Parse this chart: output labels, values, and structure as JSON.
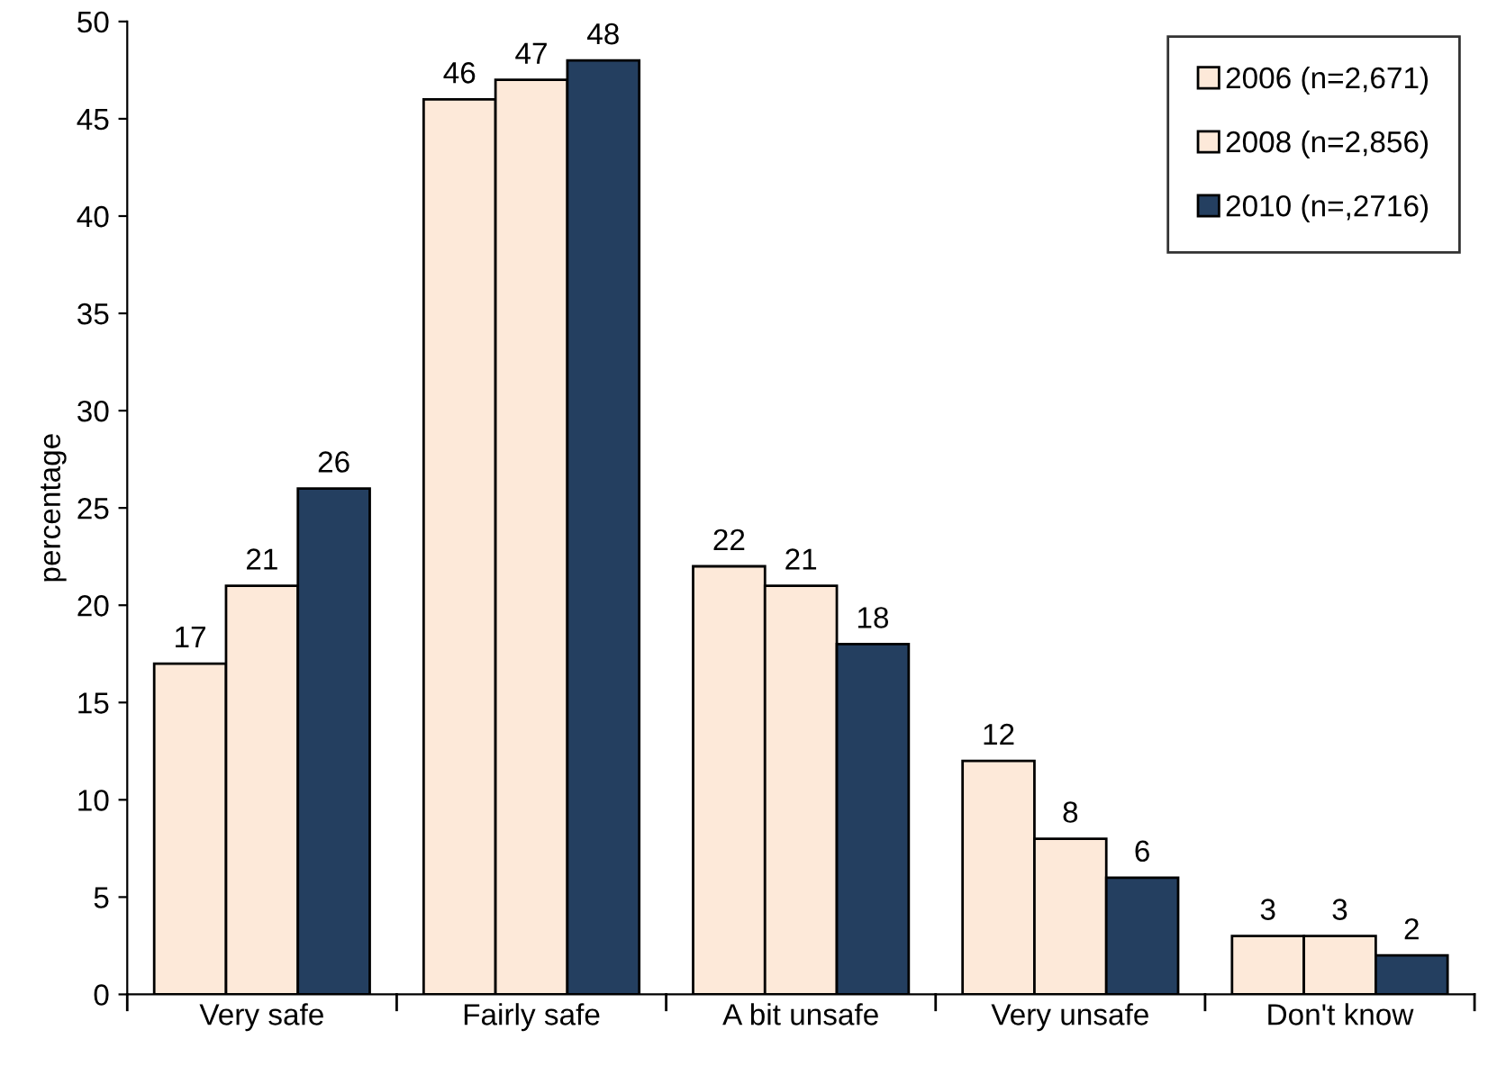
{
  "chart_data": {
    "type": "bar",
    "ylabel": "percentage",
    "categories": [
      "Very safe",
      "Fairly safe",
      "A bit unsafe",
      "Very unsafe",
      "Don't know"
    ],
    "series": [
      {
        "name": "2006 (n=2,671)",
        "color": "#fde9d9",
        "values": [
          17,
          46,
          22,
          12,
          3
        ]
      },
      {
        "name": "2008 (n=2,856)",
        "color": "#fde9d9",
        "values": [
          21,
          47,
          21,
          8,
          3
        ]
      },
      {
        "name": "2010 (n=,2716)",
        "color": "#243f60",
        "values": [
          26,
          48,
          18,
          6,
          2
        ]
      }
    ],
    "ylim": [
      0,
      50
    ],
    "yticks": [
      0,
      5,
      10,
      15,
      20,
      25,
      30,
      35,
      40,
      45,
      50
    ],
    "data_labels": true,
    "grid": false,
    "legend": "top right"
  }
}
